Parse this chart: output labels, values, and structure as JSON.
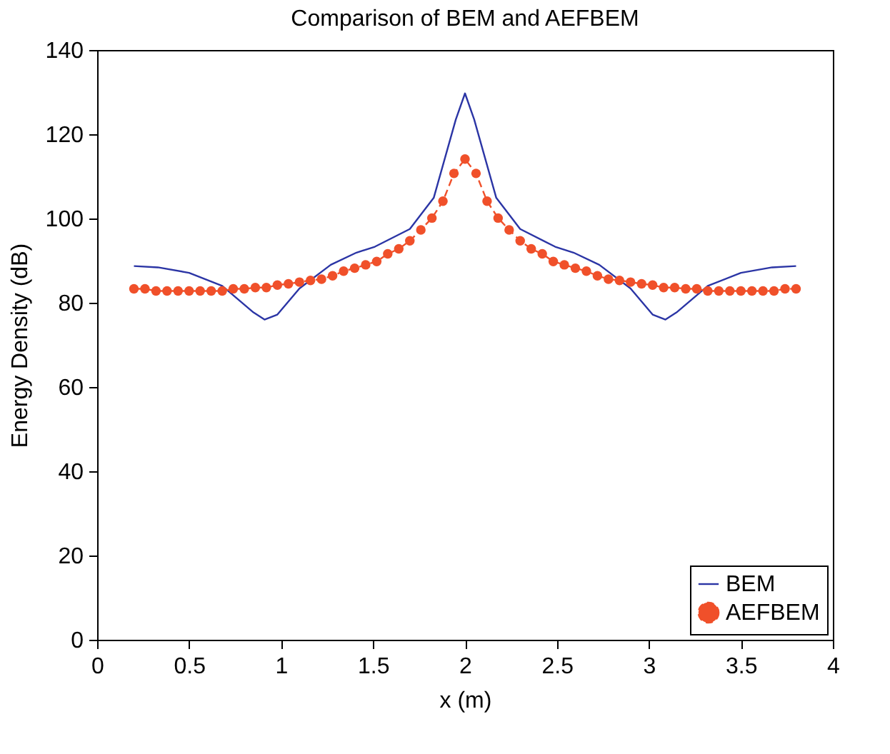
{
  "chart_data": {
    "type": "line",
    "title": "Comparison of BEM and AEFBEM",
    "xlabel": "x (m)",
    "ylabel": "Energy Density (dB)",
    "xlim": [
      0,
      4
    ],
    "xticks": [
      0,
      0.5,
      1,
      1.5,
      2,
      2.5,
      3,
      3.5,
      4
    ],
    "ylim": [
      0,
      140
    ],
    "yticks": [
      0,
      20,
      40,
      60,
      80,
      100,
      120,
      140
    ],
    "grid": false,
    "legend": "bottom right",
    "series": [
      {
        "name": "BEM",
        "color": "#2b35a5",
        "marker": "none",
        "line_style": "solid",
        "x": [
          0.2,
          0.33,
          0.5,
          0.68,
          0.85,
          0.91,
          0.98,
          1.1,
          1.27,
          1.41,
          1.51,
          1.7,
          1.83,
          1.95,
          2.0,
          2.05,
          2.17,
          2.3,
          2.49,
          2.59,
          2.73,
          2.9,
          3.02,
          3.09,
          3.15,
          3.32,
          3.5,
          3.67,
          3.8
        ],
        "values": [
          88.7,
          88.4,
          87.1,
          84.0,
          77.7,
          76.0,
          77.2,
          83.4,
          89.0,
          91.9,
          93.3,
          97.5,
          104.9,
          123.5,
          129.7,
          123.5,
          104.9,
          97.5,
          93.3,
          91.9,
          89.0,
          83.4,
          77.2,
          76.0,
          77.7,
          84.0,
          87.1,
          88.4,
          88.7
        ]
      },
      {
        "name": "AEFBEM",
        "color": "#f0502a",
        "marker": "circle",
        "line_style": "dashed",
        "x": [
          0.2,
          0.26,
          0.32,
          0.38,
          0.44,
          0.5,
          0.56,
          0.62,
          0.68,
          0.74,
          0.8,
          0.86,
          0.92,
          0.98,
          1.04,
          1.1,
          1.16,
          1.22,
          1.28,
          1.34,
          1.4,
          1.46,
          1.52,
          1.58,
          1.64,
          1.7,
          1.76,
          1.82,
          1.88,
          1.94,
          2.0,
          2.06,
          2.12,
          2.18,
          2.24,
          2.3,
          2.36,
          2.42,
          2.48,
          2.54,
          2.6,
          2.66,
          2.72,
          2.78,
          2.84,
          2.9,
          2.96,
          3.02,
          3.08,
          3.14,
          3.2,
          3.26,
          3.32,
          3.38,
          3.44,
          3.5,
          3.56,
          3.62,
          3.68,
          3.74,
          3.8
        ],
        "values": [
          83.3,
          83.3,
          82.8,
          82.8,
          82.8,
          82.8,
          82.8,
          82.8,
          82.8,
          83.3,
          83.3,
          83.6,
          83.6,
          84.2,
          84.5,
          84.9,
          85.3,
          85.6,
          86.4,
          87.5,
          88.2,
          89.0,
          89.8,
          91.6,
          92.8,
          94.7,
          97.3,
          100.1,
          104.1,
          110.7,
          114.1,
          110.7,
          104.1,
          100.1,
          97.3,
          94.7,
          92.8,
          91.6,
          89.8,
          89.0,
          88.2,
          87.5,
          86.4,
          85.6,
          85.3,
          84.9,
          84.5,
          84.2,
          83.6,
          83.6,
          83.3,
          83.3,
          82.8,
          82.8,
          82.8,
          82.8,
          82.8,
          82.8,
          82.8,
          83.3,
          83.3
        ]
      }
    ]
  }
}
